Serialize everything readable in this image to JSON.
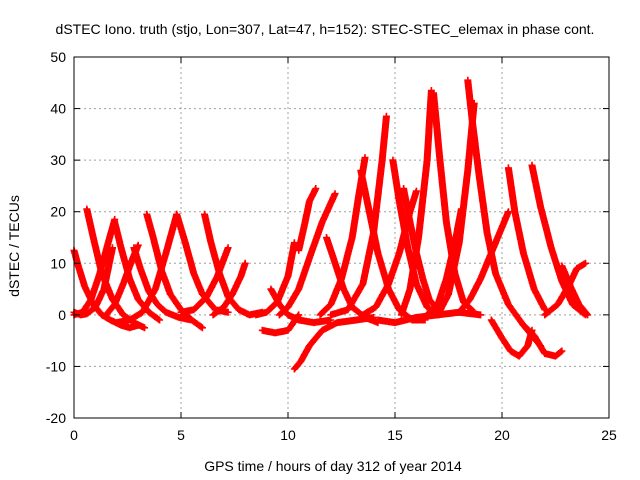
{
  "chart_data": {
    "type": "line",
    "title": "dSTEC Iono. truth (stjo, Lon=307, Lat=47, h=152): STEC-STEC_elemax in phase cont.",
    "xlabel": "GPS time / hours of day 312 of year 2014",
    "ylabel": "dSTEC  / TECUs",
    "xlim": [
      0,
      25
    ],
    "ylim": [
      -20,
      50
    ],
    "xticks": [
      "0",
      "5",
      "10",
      "15",
      "20",
      "25"
    ],
    "yticks": [
      "-20",
      "-10",
      "0",
      "10",
      "20",
      "30",
      "40",
      "50"
    ],
    "grid": true,
    "marker": "plus",
    "color": "#ff0000",
    "series": [
      {
        "x": [
          0.0,
          0.2,
          0.5,
          0.9,
          1.3,
          1.7,
          2.2,
          2.6,
          3.0
        ],
        "y": [
          12.5,
          9.5,
          5.5,
          2.0,
          0.0,
          -1.0,
          -2.0,
          -2.5,
          -2.0
        ]
      },
      {
        "x": [
          0.0,
          0.3,
          0.6,
          1.0,
          1.4,
          1.8
        ],
        "y": [
          0.5,
          0.0,
          0.2,
          1.5,
          5.0,
          13.0
        ]
      },
      {
        "x": [
          0.6,
          0.9,
          1.3,
          1.8,
          2.3,
          2.8,
          3.3
        ],
        "y": [
          20.5,
          15.0,
          8.0,
          3.0,
          0.0,
          -1.5,
          -2.5
        ]
      },
      {
        "x": [
          0.0,
          0.4,
          0.8,
          1.2,
          1.6,
          1.9
        ],
        "y": [
          0.0,
          0.5,
          3.0,
          8.0,
          14.0,
          18.5
        ]
      },
      {
        "x": [
          1.9,
          2.2,
          2.6,
          3.0,
          3.5,
          4.0
        ],
        "y": [
          18.0,
          13.0,
          7.0,
          3.0,
          0.5,
          -1.0
        ]
      },
      {
        "x": [
          1.5,
          1.9,
          2.3,
          2.7,
          3.0
        ],
        "y": [
          0.0,
          2.0,
          6.0,
          10.5,
          13.5
        ]
      },
      {
        "x": [
          2.8,
          3.1,
          3.5,
          3.9,
          4.3,
          4.9,
          5.5
        ],
        "y": [
          13.0,
          9.0,
          4.5,
          2.0,
          0.5,
          -0.5,
          -1.0
        ]
      },
      {
        "x": [
          3.4,
          3.7,
          4.1,
          4.5,
          5.0,
          5.5,
          6.0
        ],
        "y": [
          19.5,
          15.0,
          8.5,
          4.0,
          1.0,
          -1.0,
          -2.5
        ]
      },
      {
        "x": [
          2.0,
          2.6,
          3.2,
          3.8,
          4.3,
          4.8
        ],
        "y": [
          -1.5,
          -1.0,
          0.5,
          5.0,
          12.0,
          19.5
        ]
      },
      {
        "x": [
          4.8,
          5.2,
          5.6,
          6.0,
          6.6,
          7.2
        ],
        "y": [
          19.5,
          14.0,
          8.0,
          4.0,
          1.0,
          0.5
        ]
      },
      {
        "x": [
          6.1,
          6.4,
          6.8,
          7.2,
          7.7,
          8.2,
          8.8
        ],
        "y": [
          19.5,
          14.0,
          8.0,
          3.5,
          1.0,
          0.0,
          0.5
        ]
      },
      {
        "x": [
          5.0,
          5.6,
          6.2,
          6.7,
          7.2
        ],
        "y": [
          0.5,
          1.0,
          3.5,
          7.5,
          13.0
        ]
      },
      {
        "x": [
          6.5,
          7.0,
          7.4,
          7.8,
          8.0
        ],
        "y": [
          0.0,
          1.5,
          4.0,
          7.5,
          10.0
        ]
      },
      {
        "x": [
          8.5,
          9.0,
          9.5,
          10.0,
          10.3
        ],
        "y": [
          0.0,
          0.5,
          2.5,
          7.5,
          14.0
        ]
      },
      {
        "x": [
          9.2,
          9.6,
          10.0,
          10.5,
          11.2,
          12.0
        ],
        "y": [
          5.0,
          2.0,
          0.0,
          -1.0,
          -1.5,
          -1.0
        ]
      },
      {
        "x": [
          8.8,
          9.4,
          10.0,
          10.5
        ],
        "y": [
          -3.0,
          -3.5,
          -3.0,
          0.0
        ]
      },
      {
        "x": [
          10.3,
          10.6,
          11.0,
          11.6,
          12.3,
          13.2,
          14.0
        ],
        "y": [
          -10.5,
          -9.0,
          -6.0,
          -3.0,
          -1.5,
          -1.0,
          -0.5
        ]
      },
      {
        "x": [
          10.5,
          10.8,
          11.0,
          11.3
        ],
        "y": [
          12.5,
          18.0,
          22.0,
          24.5
        ]
      },
      {
        "x": [
          9.6,
          10.0,
          10.5,
          11.0,
          11.6,
          12.2
        ],
        "y": [
          0.0,
          1.5,
          5.0,
          11.0,
          18.0,
          23.5
        ]
      },
      {
        "x": [
          11.8,
          12.2,
          12.6,
          13.0,
          13.6,
          14.2
        ],
        "y": [
          15.0,
          10.0,
          5.0,
          1.5,
          -0.5,
          -1.5
        ]
      },
      {
        "x": [
          11.5,
          12.0,
          12.5,
          13.0,
          13.3,
          13.6
        ],
        "y": [
          0.0,
          2.0,
          7.0,
          15.0,
          23.0,
          30.5
        ]
      },
      {
        "x": [
          12.0,
          12.8,
          13.5,
          14.0,
          14.4,
          14.6
        ],
        "y": [
          0.0,
          1.0,
          6.0,
          16.0,
          30.0,
          38.5
        ]
      },
      {
        "x": [
          14.9,
          15.2,
          15.6,
          16.0,
          16.5,
          17.0
        ],
        "y": [
          30.0,
          22.0,
          13.0,
          6.0,
          1.5,
          0.0
        ]
      },
      {
        "x": [
          13.4,
          13.8,
          14.2,
          14.7,
          15.2,
          15.8,
          16.4
        ],
        "y": [
          28.0,
          20.0,
          12.0,
          5.0,
          1.0,
          -1.0,
          -1.0
        ]
      },
      {
        "x": [
          13.5,
          14.1,
          14.7,
          15.2,
          15.7,
          16.0
        ],
        "y": [
          0.0,
          1.5,
          6.0,
          12.0,
          20.0,
          24.0
        ]
      },
      {
        "x": [
          15.3,
          15.7,
          16.1,
          16.5,
          16.7
        ],
        "y": [
          0.0,
          5.0,
          15.0,
          30.0,
          43.5
        ]
      },
      {
        "x": [
          16.8,
          17.1,
          17.4,
          17.8,
          18.2,
          18.7
        ],
        "y": [
          43.0,
          30.0,
          18.0,
          8.0,
          2.5,
          0.5
        ]
      },
      {
        "x": [
          15.4,
          15.7,
          16.0,
          16.3,
          16.6,
          17.0
        ],
        "y": [
          24.5,
          18.0,
          12.0,
          7.0,
          3.0,
          1.0
        ]
      },
      {
        "x": [
          16.5,
          17.0,
          17.4,
          17.8,
          18.1
        ],
        "y": [
          0.0,
          2.0,
          7.0,
          14.0,
          20.5
        ]
      },
      {
        "x": [
          18.4,
          18.6,
          18.9,
          19.3,
          19.7,
          20.3,
          21.0,
          21.8
        ],
        "y": [
          45.5,
          38.0,
          28.0,
          16.0,
          8.0,
          2.0,
          -2.0,
          -6.0
        ]
      },
      {
        "x": [
          17.0,
          17.5,
          18.0,
          18.4,
          18.7
        ],
        "y": [
          0.0,
          4.0,
          14.0,
          28.0,
          41.0
        ]
      },
      {
        "x": [
          18.0,
          18.5,
          19.0,
          19.5,
          20.0,
          20.3
        ],
        "y": [
          0.5,
          3.0,
          7.0,
          12.0,
          17.0,
          20.0
        ]
      },
      {
        "x": [
          20.3,
          20.6,
          21.0,
          21.5,
          22.0
        ],
        "y": [
          28.5,
          20.0,
          12.0,
          5.0,
          1.0
        ]
      },
      {
        "x": [
          19.5,
          20.0,
          20.4,
          20.8,
          21.2,
          21.4
        ],
        "y": [
          -1.0,
          -4.5,
          -7.0,
          -8.0,
          -6.0,
          -3.0
        ]
      },
      {
        "x": [
          21.4,
          21.8,
          22.3,
          22.8,
          23.3,
          23.9
        ],
        "y": [
          29.0,
          21.0,
          13.0,
          6.5,
          2.0,
          0.0
        ]
      },
      {
        "x": [
          21.0,
          21.5,
          22.0,
          22.5,
          22.8
        ],
        "y": [
          -2.0,
          -4.0,
          -7.5,
          -8.0,
          -7.0
        ]
      },
      {
        "x": [
          22.0,
          22.6,
          23.1,
          23.5,
          23.9
        ],
        "y": [
          0.0,
          2.0,
          5.5,
          9.0,
          10.0
        ]
      },
      {
        "x": [
          22.8,
          23.2,
          23.6,
          24.0
        ],
        "y": [
          9.5,
          5.5,
          2.0,
          0.0
        ]
      },
      {
        "x": [
          14.2,
          15.0,
          16.0,
          17.0,
          18.0,
          19.0
        ],
        "y": [
          -1.0,
          -1.5,
          -0.5,
          0.0,
          0.5,
          0.0
        ]
      }
    ]
  }
}
